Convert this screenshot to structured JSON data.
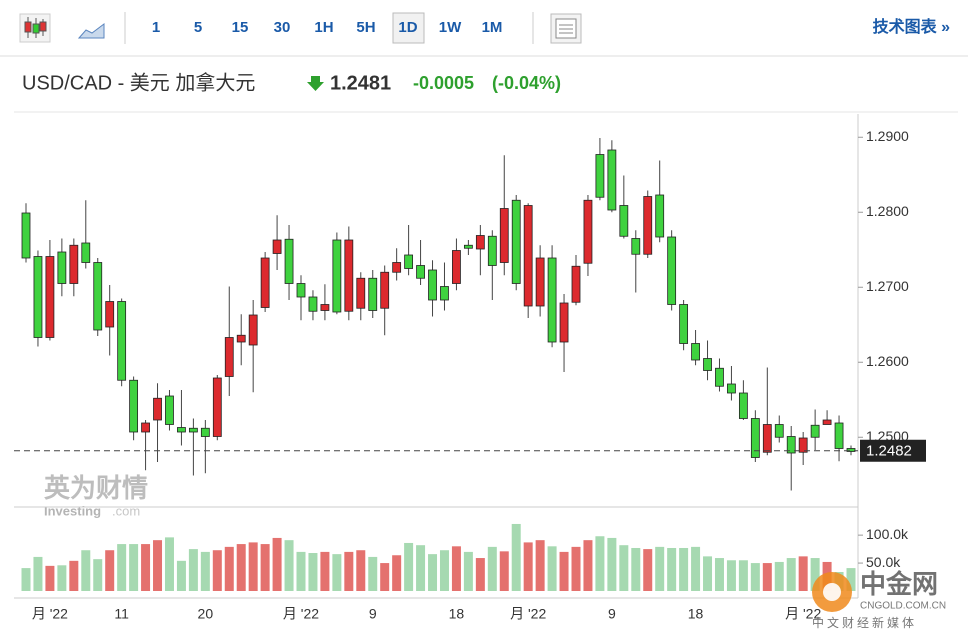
{
  "toolbar": {
    "intervals": [
      "1",
      "5",
      "15",
      "30",
      "1H",
      "5H",
      "1D",
      "1W",
      "1M"
    ],
    "active": "1D",
    "tech_link": "技术图表 »"
  },
  "header": {
    "symbol": "USD/CAD - 美元 加拿大元",
    "price": "1.2481",
    "change": "-0.0005",
    "change_pct": "(-0.04%)"
  },
  "watermarks": {
    "brand_cn": "英为财情",
    "brand_en": "Investing",
    "brand_domain": ".com",
    "logo_cn": "中金网",
    "logo_domain": "CNGOLD.COM.CN",
    "logo_tagline": "中文财经新媒体"
  },
  "chart_data": {
    "type": "candlestick",
    "x": [
      null,
      null,
      "月 '22",
      null,
      null,
      null,
      null,
      null,
      "11",
      null,
      null,
      null,
      null,
      null,
      null,
      "20",
      null,
      null,
      null,
      null,
      null,
      null,
      null,
      "月 '22",
      null,
      null,
      null,
      null,
      null,
      "9",
      null,
      null,
      null,
      null,
      null,
      null,
      "18",
      null,
      null,
      null,
      null,
      null,
      "月 '22",
      null,
      null,
      null,
      null,
      null,
      null,
      "9",
      null,
      null,
      null,
      null,
      null,
      null,
      "18",
      null,
      null,
      null,
      null,
      null,
      null,
      null,
      null,
      "月 '22",
      null,
      null,
      null,
      null
    ],
    "open": [
      1.2799,
      1.2741,
      1.2633,
      1.2747,
      1.2705,
      1.2759,
      1.2733,
      1.2647,
      1.2681,
      1.2576,
      1.2507,
      1.2523,
      1.2555,
      1.2513,
      1.2512,
      1.2512,
      1.2501,
      1.2581,
      1.2627,
      1.2623,
      1.2673,
      1.2745,
      1.2764,
      1.2705,
      1.2687,
      1.2669,
      1.2763,
      1.2668,
      1.2672,
      1.2712,
      1.2672,
      1.272,
      1.2743,
      1.2729,
      1.2723,
      1.2701,
      1.2705,
      1.2756,
      1.2751,
      1.2768,
      1.2733,
      1.2816,
      1.2675,
      1.2675,
      1.2739,
      1.2627,
      1.268,
      1.2732,
      1.2877,
      1.2883,
      1.2809,
      1.2765,
      1.2744,
      1.2823,
      1.2767,
      1.2677,
      1.2625,
      1.2605,
      1.2592,
      1.2571,
      1.2559,
      1.2525,
      1.248,
      1.2517,
      1.2501,
      1.248,
      1.2516,
      1.2517,
      1.2519,
      1.2485
    ],
    "high": [
      1.2812,
      1.2749,
      1.2763,
      1.2765,
      1.2765,
      1.2816,
      1.2739,
      1.2703,
      1.2685,
      1.2581,
      1.2523,
      1.2572,
      1.2563,
      1.2563,
      1.2525,
      1.2523,
      1.2583,
      1.2701,
      1.2664,
      1.2683,
      1.2747,
      1.2796,
      1.2783,
      1.2716,
      1.2696,
      1.2704,
      1.2773,
      1.2781,
      1.272,
      1.2723,
      1.2729,
      1.2752,
      1.2783,
      1.2763,
      1.2736,
      1.2733,
      1.2765,
      1.2763,
      1.2783,
      1.2776,
      1.2876,
      1.2823,
      1.2812,
      1.2756,
      1.2756,
      1.2691,
      1.2743,
      1.2823,
      1.2899,
      1.2896,
      1.2849,
      1.2776,
      1.2829,
      1.2869,
      1.2776,
      1.2683,
      1.2643,
      1.2629,
      1.2605,
      1.2595,
      1.2576,
      1.2536,
      1.2593,
      1.2529,
      1.2515,
      1.2507,
      1.2537,
      1.2536,
      1.2529,
      1.2489
    ],
    "low": [
      1.2733,
      1.2621,
      1.2629,
      1.2688,
      1.2688,
      1.2725,
      1.2635,
      1.2609,
      1.2568,
      1.2496,
      1.2456,
      1.2467,
      1.2509,
      1.2489,
      1.2449,
      1.2452,
      1.2496,
      1.2555,
      1.2596,
      1.256,
      1.2667,
      1.2723,
      1.2683,
      1.2656,
      1.2656,
      1.2656,
      1.2664,
      1.2656,
      1.2656,
      1.2659,
      1.2636,
      1.2709,
      1.2716,
      1.2703,
      1.2661,
      1.2669,
      1.2696,
      1.2743,
      1.2716,
      1.2683,
      1.2716,
      1.2696,
      1.2659,
      1.2661,
      1.262,
      1.2587,
      1.2676,
      1.2715,
      1.2816,
      1.28,
      1.2765,
      1.2693,
      1.2739,
      1.276,
      1.2669,
      1.2616,
      1.2596,
      1.2576,
      1.2561,
      1.2549,
      1.2523,
      1.2467,
      1.2476,
      1.2493,
      1.2429,
      1.2463,
      1.2483,
      1.2517,
      1.2468,
      1.2476
    ],
    "close": [
      1.2739,
      1.2633,
      1.2741,
      1.2705,
      1.2756,
      1.2733,
      1.2643,
      1.2681,
      1.2576,
      1.2507,
      1.2519,
      1.2552,
      1.2517,
      1.2507,
      1.2507,
      1.2501,
      1.2579,
      1.2633,
      1.2636,
      1.2663,
      1.2739,
      1.2763,
      1.2705,
      1.2687,
      1.2668,
      1.2677,
      1.2667,
      1.2763,
      1.2712,
      1.2669,
      1.272,
      1.2733,
      1.2725,
      1.2712,
      1.2683,
      1.2683,
      1.2749,
      1.2752,
      1.2769,
      1.2729,
      1.2805,
      1.2705,
      1.2809,
      1.2739,
      1.2627,
      1.2679,
      1.2728,
      1.2816,
      1.282,
      1.2803,
      1.2768,
      1.2744,
      1.2821,
      1.2767,
      1.2677,
      1.2625,
      1.2603,
      1.2589,
      1.2568,
      1.2559,
      1.2525,
      1.2473,
      1.2517,
      1.25,
      1.2479,
      1.2499,
      1.25,
      1.2523,
      1.2485,
      1.2481
    ],
    "up_color": "#dc2a2e",
    "down_color": "#3fd23f",
    "ylim": [
      1.2407,
      1.2923
    ],
    "yticks": [
      {
        "value": 1.25,
        "label": "1.2500"
      },
      {
        "value": 1.26,
        "label": "1.2600"
      },
      {
        "value": 1.27,
        "label": "1.2700"
      },
      {
        "value": 1.28,
        "label": "1.2800"
      },
      {
        "value": 1.29,
        "label": "1.2900"
      }
    ],
    "last_price": 1.2482,
    "volume": {
      "values": [
        41000,
        61000,
        45000,
        46000,
        54000,
        73000,
        57000,
        73000,
        84000,
        84000,
        84000,
        91000,
        96000,
        54000,
        75000,
        70000,
        73000,
        79000,
        84000,
        87000,
        84000,
        95000,
        91000,
        70000,
        68000,
        70000,
        66000,
        70000,
        73000,
        61000,
        50000,
        64000,
        86000,
        82000,
        66000,
        73000,
        80000,
        70000,
        59000,
        79000,
        71000,
        120000,
        87000,
        91000,
        80000,
        70000,
        79000,
        91000,
        98000,
        95000,
        82000,
        77000,
        75000,
        79000,
        77000,
        77000,
        79000,
        62000,
        59000,
        55000,
        55000,
        50000,
        50000,
        52000,
        59000,
        62000,
        59000,
        52000,
        34000,
        41000
      ],
      "ylim": [
        0,
        145000
      ],
      "yticks": [
        {
          "value": 50000,
          "label": "50.0k"
        },
        {
          "value": 100000,
          "label": "100.0k"
        }
      ],
      "up_color": "#e4716e",
      "down_color": "#a6d9b1"
    }
  }
}
